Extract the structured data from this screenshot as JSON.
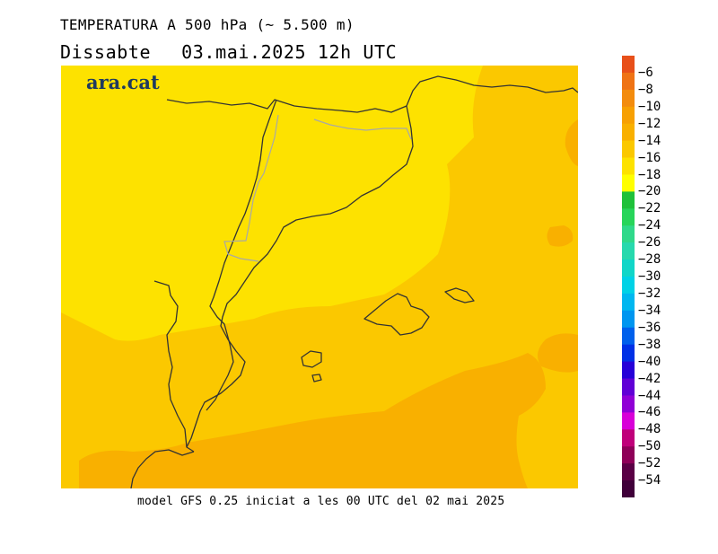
{
  "title": {
    "line1": "TEMPERATURA A 500 hPa (~ 5.500 m)",
    "day": "Dissabte",
    "datetime": "03.mai.2025 12h UTC"
  },
  "logo": "ara.cat",
  "footer": "model GFS 0.25 iniciat a les 00 UTC del 02 mai 2025",
  "colorbar": {
    "labels": [
      "-6",
      "-8",
      "-10",
      "-12",
      "-14",
      "-16",
      "-18",
      "-20",
      "-22",
      "-24",
      "-26",
      "-28",
      "-30",
      "-32",
      "-34",
      "-36",
      "-38",
      "-40",
      "-42",
      "-44",
      "-46",
      "-48",
      "-50",
      "-52",
      "-54"
    ],
    "colors": [
      "#e8501a",
      "#ef7315",
      "#f38c0e",
      "#f7a003",
      "#f9b000",
      "#fbc800",
      "#fde200",
      "#ffff00",
      "#1fc13a",
      "#27d55a",
      "#2fd98a",
      "#27d9ad",
      "#11d6c8",
      "#00d2e6",
      "#00b7f0",
      "#0096f0",
      "#0060ec",
      "#0030e6",
      "#2600d8",
      "#6000d6",
      "#9000d6",
      "#d800d8",
      "#c0007a",
      "#8e0058",
      "#5a0045",
      "#40003a"
    ]
  },
  "map": {
    "fill_colors": {
      "minus_18_to_minus_16": "#fde200",
      "minus_16_to_minus_14": "#fbc800",
      "minus_14_to_minus_12": "#f9b000"
    }
  }
}
